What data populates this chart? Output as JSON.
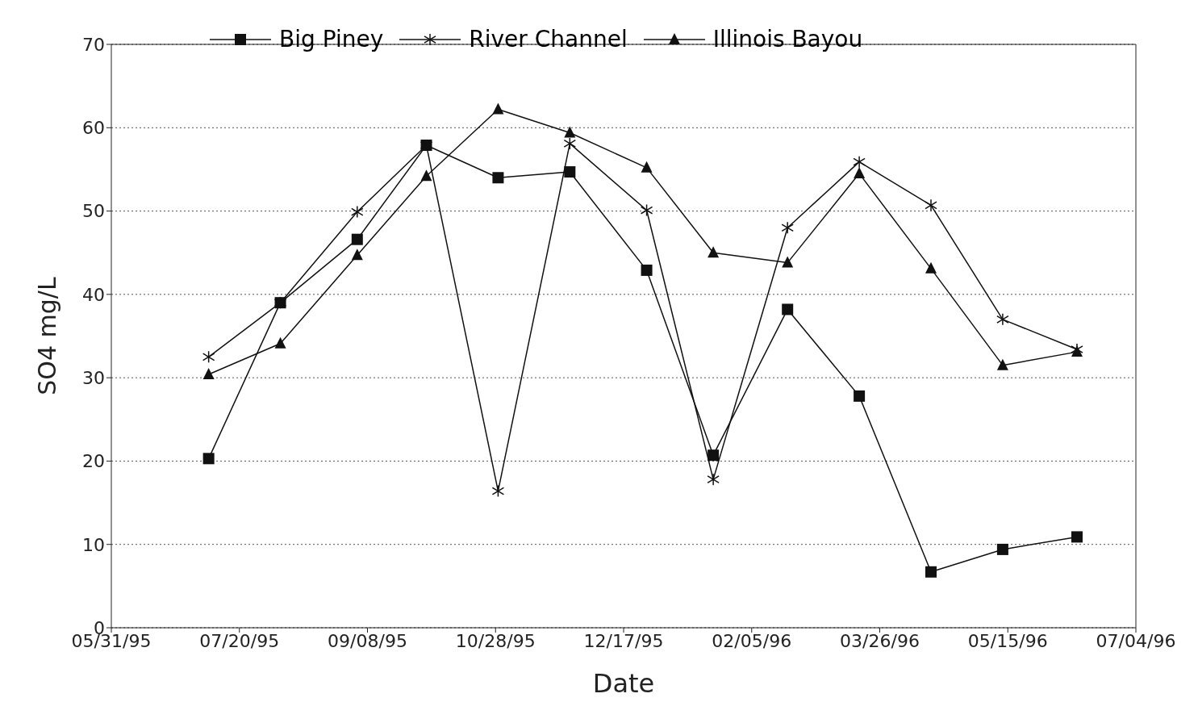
{
  "chart_data": {
    "type": "line",
    "xlabel": "Date",
    "ylabel": "SO4 mg/L",
    "x": [
      "1995-07-08",
      "1995-08-05",
      "1995-09-04",
      "1995-10-01",
      "1995-10-29",
      "1995-11-26",
      "1995-12-26",
      "1996-01-21",
      "1996-02-19",
      "1996-03-18",
      "1996-04-15",
      "1996-05-13",
      "1996-06-11"
    ],
    "series": [
      {
        "name": "Big Piney",
        "color": "#111111",
        "marker": "square",
        "values": [
          20.3,
          39,
          46.6,
          57.9,
          54,
          54.7,
          42.9,
          20.7,
          38.2,
          27.8,
          6.7,
          9.4,
          10.9
        ]
      },
      {
        "name": "River Channel",
        "color": "#111111",
        "marker": "cross",
        "values": [
          32.5,
          39,
          49.9,
          57.9,
          16.4,
          58.1,
          50.1,
          17.8,
          48,
          55.9,
          50.7,
          37,
          33.4
        ]
      },
      {
        "name": "Illinois Bayou",
        "color": "#111111",
        "marker": "triangle",
        "values": [
          30.4,
          34.1,
          44.7,
          54.2,
          62.2,
          59.4,
          55.2,
          45,
          43.8,
          54.5,
          43.1,
          31.5,
          33.1
        ]
      }
    ],
    "xlim": [
      "1995-05-31",
      "1996-07-04"
    ],
    "xticks": [
      {
        "value": "1995-05-31",
        "label": "05/31/95"
      },
      {
        "value": "1995-07-20",
        "label": "07/20/95"
      },
      {
        "value": "1995-09-08",
        "label": "09/08/95"
      },
      {
        "value": "1995-10-28",
        "label": "10/28/95"
      },
      {
        "value": "1995-12-17",
        "label": "12/17/95"
      },
      {
        "value": "1996-02-05",
        "label": "02/05/96"
      },
      {
        "value": "1996-03-26",
        "label": "03/26/96"
      },
      {
        "value": "1996-05-15",
        "label": "05/15/96"
      },
      {
        "value": "1996-07-04",
        "label": "07/04/96"
      }
    ],
    "ylim": [
      0,
      70
    ],
    "yticks": [
      0,
      10,
      20,
      30,
      40,
      50,
      60,
      70
    ],
    "grid": "y",
    "legend": "top",
    "line_style": "solid"
  }
}
